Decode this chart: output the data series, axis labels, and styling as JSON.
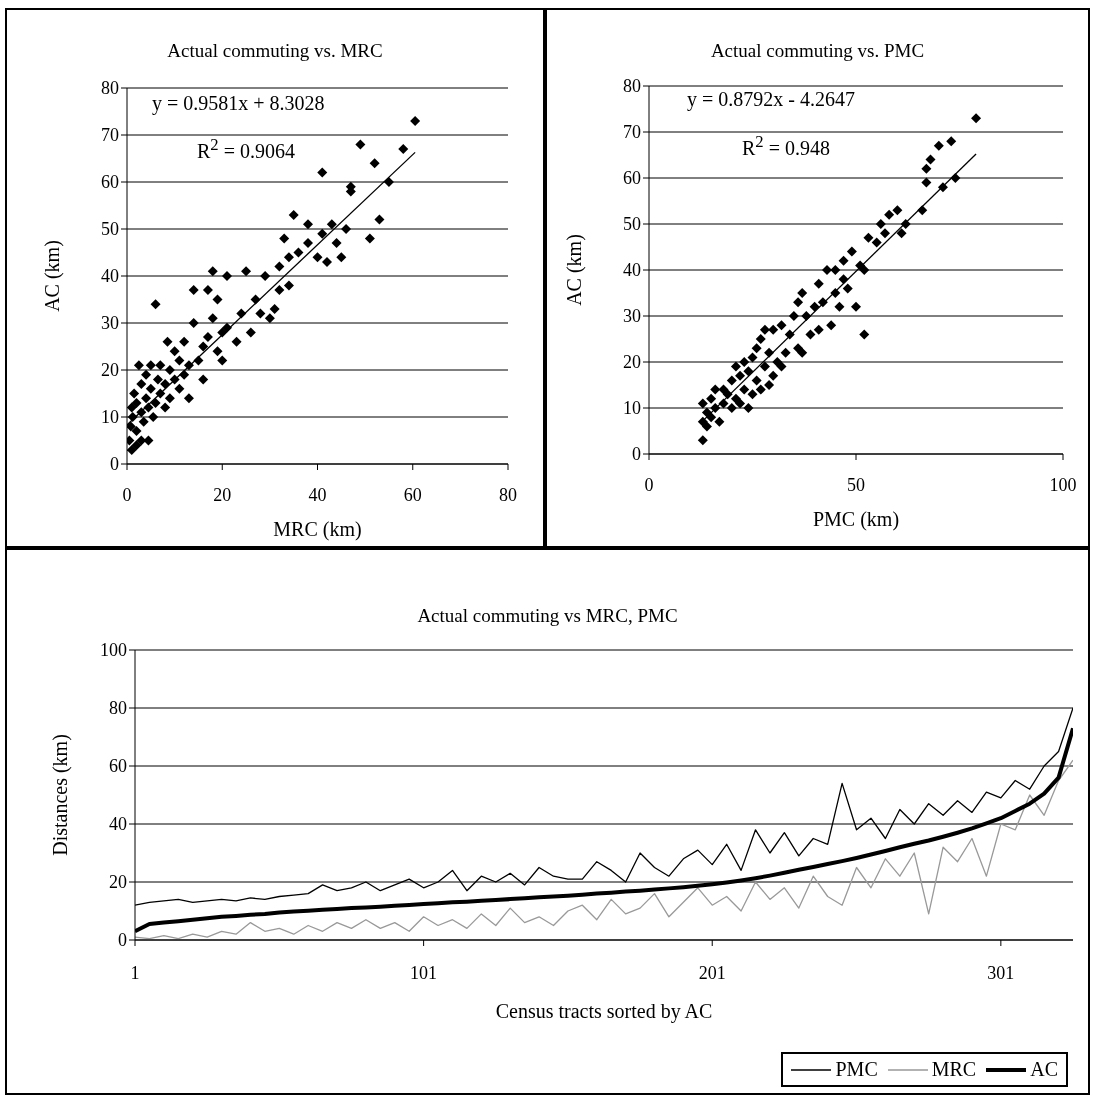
{
  "chart_data": [
    {
      "type": "scatter",
      "title": "Actual commuting vs. MRC",
      "xlabel": "MRC (km)",
      "ylabel": "AC (km)",
      "xlim": [
        0,
        80
      ],
      "xticks": [
        0,
        20,
        40,
        60,
        80
      ],
      "ylim": [
        0,
        80
      ],
      "yticks": [
        0,
        10,
        20,
        30,
        40,
        50,
        60,
        70,
        80
      ],
      "grid": "y",
      "marker": "diamond",
      "annotations": [
        "y = 0.9581x + 8.3028",
        "R$^{2}$ = 0.9064"
      ],
      "series": [
        {
          "type": "scatter",
          "color": "#000000",
          "x": [
            0.5,
            0.8,
            1,
            1.2,
            1.5,
            2,
            2,
            2.5,
            3,
            3,
            3.5,
            4,
            4,
            4.5,
            5,
            5,
            5.5,
            6,
            6,
            6.5,
            7,
            7,
            8,
            8,
            8.5,
            9,
            9,
            10,
            10,
            11,
            11,
            12,
            12,
            13,
            13,
            14,
            14,
            15,
            16,
            16,
            17,
            17,
            18,
            18,
            19,
            19,
            20,
            20,
            21,
            21,
            23,
            24,
            25,
            26,
            27,
            28,
            29,
            30,
            31,
            32,
            32,
            33,
            34,
            34,
            35,
            36,
            38,
            38,
            40,
            41,
            41,
            42,
            43,
            44,
            45,
            46,
            47,
            47,
            49,
            51,
            52,
            53,
            55,
            58,
            60.5,
            1,
            2,
            3,
            4.5
          ],
          "values": [
            5,
            8,
            12,
            10,
            15,
            7,
            13,
            21,
            11,
            17,
            9,
            14,
            19,
            12,
            16,
            21,
            10,
            13,
            34,
            18,
            15,
            21,
            12,
            17,
            26,
            14,
            20,
            18,
            24,
            16,
            22,
            19,
            26,
            14,
            21,
            30,
            37,
            22,
            18,
            25,
            27,
            37,
            41,
            31,
            24,
            35,
            28,
            22,
            29,
            40,
            26,
            32,
            41,
            28,
            35,
            32,
            40,
            31,
            33,
            37,
            42,
            48,
            38,
            44,
            53,
            45,
            51,
            47,
            44,
            49,
            62,
            43,
            51,
            47,
            44,
            50,
            58,
            59,
            68,
            48,
            64,
            52,
            60,
            67,
            73,
            3,
            4,
            5,
            5
          ]
        },
        {
          "type": "line",
          "marker": "none",
          "color": "#000000",
          "x": [
            0,
            60.5
          ],
          "values": [
            8.3,
            66.3
          ]
        }
      ]
    },
    {
      "type": "scatter",
      "title": "Actual commuting vs. PMC",
      "xlabel": "PMC (km)",
      "ylabel": "AC (km)",
      "xlim": [
        0,
        100
      ],
      "xticks": [
        0,
        50,
        100
      ],
      "ylim": [
        0,
        80
      ],
      "yticks": [
        0,
        10,
        20,
        30,
        40,
        50,
        60,
        70,
        80
      ],
      "grid": "y",
      "marker": "diamond",
      "annotations": [
        "y = 0.8792x - 4.2647",
        "R$^{2}$ = 0.948"
      ],
      "series": [
        {
          "type": "scatter",
          "color": "#000000",
          "x": [
            13,
            13,
            13,
            14,
            14,
            15,
            15,
            16,
            16,
            17,
            18,
            18,
            19,
            20,
            20,
            21,
            21,
            22,
            22,
            23,
            23,
            24,
            24,
            25,
            25,
            26,
            26,
            27,
            27,
            28,
            28,
            29,
            29,
            30,
            30,
            31,
            32,
            32,
            33,
            34,
            35,
            36,
            36,
            37,
            37,
            38,
            39,
            40,
            41,
            41,
            42,
            43,
            44,
            45,
            45,
            46,
            47,
            47,
            48,
            49,
            50,
            51,
            52,
            52,
            53,
            55,
            56,
            57,
            58,
            60,
            61,
            62,
            66,
            67,
            67,
            68,
            70,
            71,
            73,
            74,
            79
          ],
          "values": [
            3,
            7,
            11,
            6,
            9,
            8,
            12,
            10,
            14,
            7,
            11,
            14,
            13,
            10,
            16,
            12,
            19,
            11,
            17,
            14,
            20,
            10,
            18,
            13,
            21,
            16,
            23,
            14,
            25,
            19,
            27,
            15,
            22,
            17,
            27,
            20,
            19,
            28,
            22,
            26,
            30,
            23,
            33,
            22,
            35,
            30,
            26,
            32,
            27,
            37,
            33,
            40,
            28,
            35,
            40,
            32,
            42,
            38,
            36,
            44,
            32,
            41,
            26,
            40,
            47,
            46,
            50,
            48,
            52,
            53,
            48,
            50,
            53,
            59,
            62,
            64,
            67,
            58,
            68,
            60,
            73
          ]
        },
        {
          "type": "line",
          "marker": "none",
          "color": "#000000",
          "x": [
            13,
            79
          ],
          "values": [
            7.2,
            65.2
          ]
        }
      ]
    },
    {
      "type": "line",
      "title": "Actual commuting vs MRC, PMC",
      "xlabel": "Census tracts sorted by AC",
      "ylabel": "Distances (km)",
      "xlim": [
        1,
        326
      ],
      "xticks": [
        1,
        101,
        201,
        301
      ],
      "ylim": [
        0,
        100
      ],
      "yticks": [
        0,
        20,
        40,
        60,
        80,
        100
      ],
      "grid": "y",
      "legend": "bottom right",
      "x": [
        1,
        6,
        11,
        16,
        21,
        26,
        31,
        36,
        41,
        46,
        51,
        56,
        61,
        66,
        71,
        76,
        81,
        86,
        91,
        96,
        101,
        106,
        111,
        116,
        121,
        126,
        131,
        136,
        141,
        146,
        151,
        156,
        161,
        166,
        171,
        176,
        181,
        186,
        191,
        196,
        201,
        206,
        211,
        216,
        221,
        226,
        231,
        236,
        241,
        246,
        251,
        256,
        261,
        266,
        271,
        276,
        281,
        286,
        291,
        296,
        301,
        306,
        311,
        316,
        321,
        326
      ],
      "series": [
        {
          "name": "PMC",
          "color": "#000000",
          "values": [
            12,
            13,
            13.5,
            14,
            13,
            13.5,
            14,
            13.5,
            14.5,
            14,
            15,
            15.5,
            16,
            19,
            17,
            18,
            20,
            17,
            19,
            21,
            18,
            20,
            24,
            17,
            22,
            20,
            23,
            19,
            25,
            22,
            21,
            21,
            27,
            24,
            20,
            30,
            25,
            22,
            28,
            31,
            26,
            33,
            24,
            38,
            30,
            37,
            29,
            35,
            33,
            54,
            38,
            42,
            35,
            45,
            40,
            47,
            43,
            48,
            44,
            51,
            49,
            55,
            52,
            60,
            65,
            80
          ]
        },
        {
          "name": "MRC",
          "color": "#999999",
          "values": [
            1,
            0.5,
            1.5,
            0.5,
            2,
            1,
            3,
            2,
            6,
            3,
            4,
            2,
            5,
            3,
            6,
            4,
            7,
            4,
            6,
            3,
            8,
            5,
            7,
            4,
            9,
            5,
            11,
            6,
            8,
            5,
            10,
            12,
            7,
            14,
            9,
            11,
            16,
            8,
            13,
            18,
            12,
            15,
            10,
            20,
            14,
            18,
            11,
            22,
            15,
            12,
            25,
            18,
            28,
            22,
            30,
            9,
            32,
            27,
            35,
            22,
            40,
            38,
            50,
            43,
            55,
            62
          ]
        },
        {
          "name": "AC",
          "color": "#000000",
          "values": [
            3,
            5.5,
            6,
            6.5,
            7,
            7.5,
            8,
            8.3,
            8.7,
            9,
            9.5,
            9.8,
            10.1,
            10.4,
            10.7,
            11,
            11.2,
            11.5,
            11.8,
            12.1,
            12.4,
            12.7,
            13,
            13.2,
            13.5,
            13.8,
            14.1,
            14.4,
            14.7,
            15,
            15.3,
            15.6,
            16,
            16.3,
            16.7,
            17,
            17.4,
            17.8,
            18.2,
            18.7,
            19.2,
            19.8,
            20.5,
            21.3,
            22.2,
            23.2,
            24.2,
            25.2,
            26.2,
            27.2,
            28.3,
            29.5,
            30.7,
            32,
            33.2,
            34.3,
            35.6,
            37,
            38.5,
            40.2,
            42,
            44.5,
            47,
            50.5,
            56,
            73
          ]
        }
      ]
    }
  ]
}
